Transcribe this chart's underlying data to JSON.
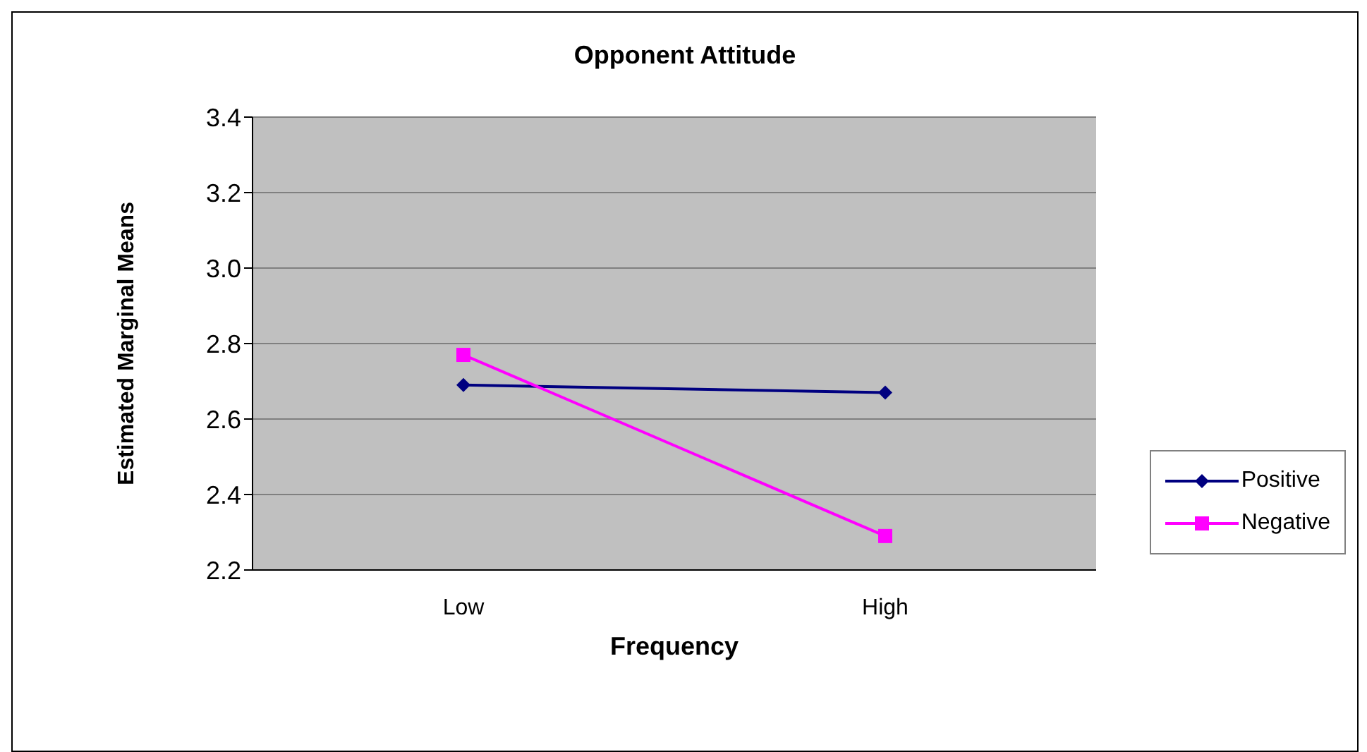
{
  "chart_data": {
    "type": "line",
    "title": "Opponent Attitude",
    "xlabel": "Frequency",
    "ylabel": "Estimated Marginal Means",
    "categories": [
      "Low",
      "High"
    ],
    "series": [
      {
        "name": "Positive",
        "color": "#000080",
        "marker": "diamond",
        "values": [
          2.69,
          2.67
        ]
      },
      {
        "name": "Negative",
        "color": "#ff00ff",
        "marker": "square",
        "values": [
          2.77,
          2.29
        ]
      }
    ],
    "ylim": [
      2.2,
      3.4
    ],
    "yticks": [
      2.2,
      2.4,
      2.6,
      2.8,
      {
        "value": 3,
        "label": "3.0"
      },
      3.2,
      3.4
    ],
    "grid": "y",
    "legend": "right"
  }
}
